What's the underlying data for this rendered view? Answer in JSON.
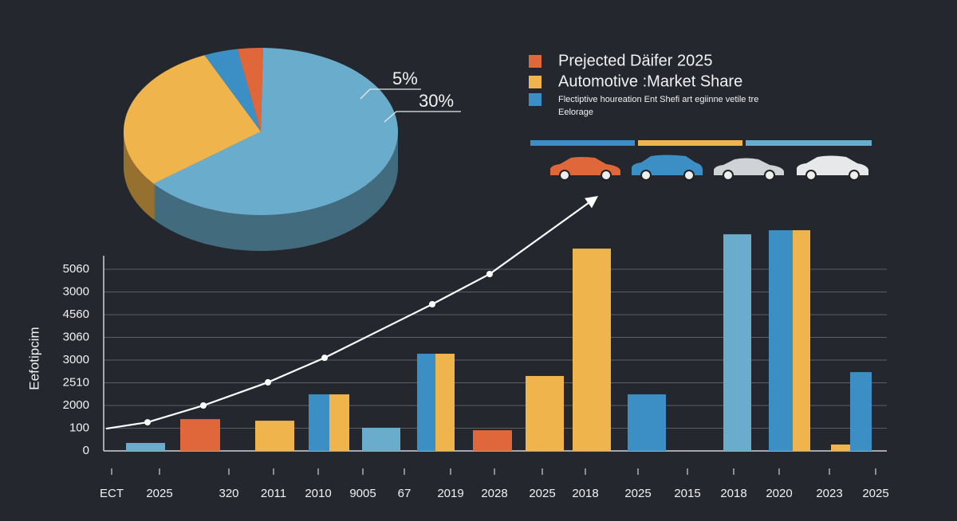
{
  "chart_data": [
    {
      "type": "pie",
      "values": [
        64,
        29,
        4,
        3
      ],
      "colors": [
        "#6aaccc",
        "#f0b44c",
        "#3b8fc4",
        "#e0673a"
      ],
      "annotations": [
        "5%",
        "30%"
      ]
    },
    {
      "type": "bar",
      "ylabel": "Eefotipcim",
      "ylim": [
        0,
        10
      ],
      "yticks": [
        {
          "value": 0,
          "label": "0"
        },
        {
          "value": 1,
          "label": "100"
        },
        {
          "value": 2,
          "label": "2000"
        },
        {
          "value": 3,
          "label": "2510"
        },
        {
          "value": 4,
          "label": "3000"
        },
        {
          "value": 5,
          "label": "3060"
        },
        {
          "value": 6,
          "label": "4560"
        },
        {
          "value": 7,
          "label": "3000"
        },
        {
          "value": 8,
          "label": "5060"
        }
      ],
      "categories": [
        "ECT",
        "2025",
        "320",
        "2011",
        "2010",
        "9005",
        "67",
        "2019",
        "2028",
        "2025",
        "2018",
        "2025",
        "2015",
        "2018",
        "2020",
        "2023",
        "2025"
      ],
      "bars": [
        {
          "color": "#6aaccc",
          "value": 0.35
        },
        {
          "color": "#e0673a",
          "value": 1.4
        },
        {
          "color": "#f0b44c",
          "value": 1.33
        },
        {
          "color": "#3b8fc4",
          "value": 2.49
        },
        {
          "color": "#f0b44c",
          "value": 2.49
        },
        {
          "color": "#6aaccc",
          "value": 1.02
        },
        {
          "color": "#3b8fc4",
          "value": 4.28
        },
        {
          "color": "#f0b44c",
          "value": 4.28
        },
        {
          "color": "#e0673a",
          "value": 0.91
        },
        {
          "color": "#f0b44c",
          "value": 3.3
        },
        {
          "color": "#f0b44c",
          "value": 8.91
        },
        {
          "color": "#3b8fc4",
          "value": 2.49
        },
        {
          "color": "#6aaccc",
          "value": 9.54
        },
        {
          "color": "#3b8fc4",
          "value": 9.72
        },
        {
          "color": "#f0b44c",
          "value": 9.72
        },
        {
          "color": "#f0b44c",
          "value": 0.28
        },
        {
          "color": "#3b8fc4",
          "value": 3.47
        }
      ],
      "trend": {
        "color": "#ffffff",
        "values": [
          0.98,
          1.26,
          2.0,
          3.02,
          4.1,
          6.46,
          7.79,
          11.1
        ]
      }
    }
  ],
  "legend": [
    {
      "label": "Prejected Däifer 2025",
      "color": "#e0673a"
    },
    {
      "label": "Automotive :Market Share",
      "color": "#f0b44c"
    },
    {
      "label": "Flectiptive houreation Ent Shefi art egiinne vetile tre",
      "color": "#3b8fc4"
    }
  ],
  "legend_note": "Eelorage"
}
